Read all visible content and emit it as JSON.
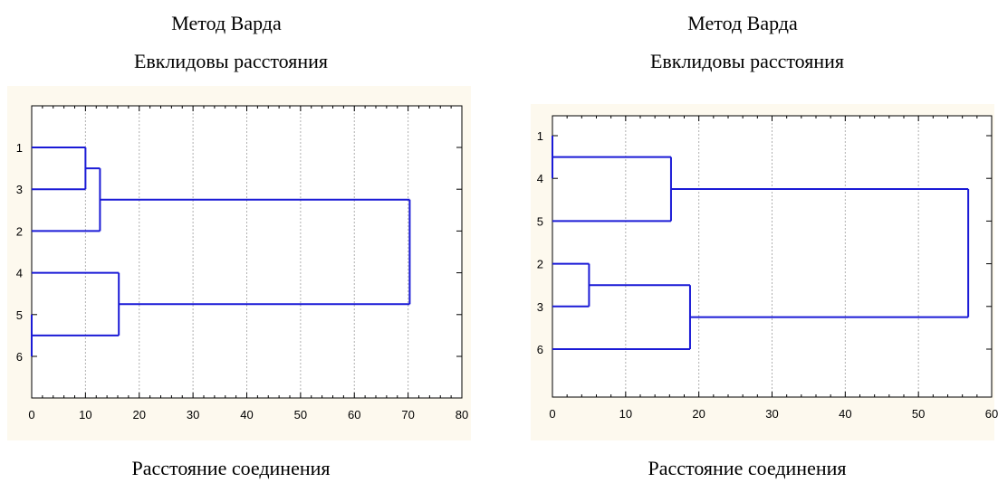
{
  "charts": [
    {
      "title_line1": "Метод Варда",
      "title_line2": "Евклидовы расстояния",
      "xlabel": "Расстояние соединения"
    },
    {
      "title_line1": "Метод Варда",
      "title_line2": "Евклидовы расстояния",
      "xlabel": "Расстояние соединения"
    }
  ],
  "colors": {
    "panel_bg": "#fdf9ee",
    "link_line": "#1a1ad6",
    "grid": "#b0b0b0",
    "axis": "#000000"
  },
  "chart_data": [
    {
      "type": "dendrogram",
      "orientation": "horizontal",
      "title": "Метод Варда Евклидовы расстояния",
      "xlabel": "Расстояние соединения",
      "xlim": [
        0,
        80
      ],
      "xticks": [
        0,
        10,
        20,
        30,
        40,
        50,
        60,
        70,
        80
      ],
      "leaves": [
        "1",
        "3",
        "2",
        "4",
        "5",
        "6"
      ],
      "merges": [
        {
          "a": "5",
          "b": "6",
          "height": 0
        },
        {
          "a": "1",
          "b": "3",
          "height": 10
        },
        {
          "a": "1,3",
          "b": "2",
          "height": 12.7
        },
        {
          "a": "4",
          "b": "5,6",
          "height": 16.2
        },
        {
          "a": "1,3,2",
          "b": "4,5,6",
          "height": 70.3
        }
      ],
      "grid": true
    },
    {
      "type": "dendrogram",
      "orientation": "horizontal",
      "title": "Метод Варда Евклидовы расстояния",
      "xlabel": "Расстояние соединения",
      "xlim": [
        0,
        60
      ],
      "xticks": [
        0,
        10,
        20,
        30,
        40,
        50,
        60
      ],
      "leaves": [
        "1",
        "4",
        "5",
        "2",
        "3",
        "6"
      ],
      "merges": [
        {
          "a": "1",
          "b": "4",
          "height": 0
        },
        {
          "a": "2",
          "b": "3",
          "height": 5
        },
        {
          "a": "1,4",
          "b": "5",
          "height": 16.2
        },
        {
          "a": "2,3",
          "b": "6",
          "height": 18.8
        },
        {
          "a": "1,4,5",
          "b": "2,3,6",
          "height": 56.8
        }
      ],
      "grid": true
    }
  ]
}
